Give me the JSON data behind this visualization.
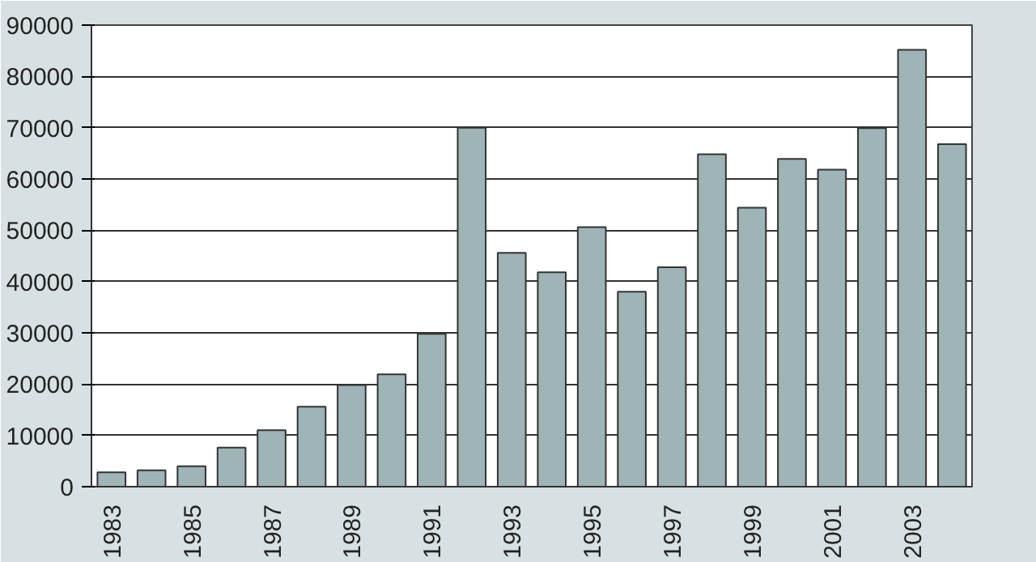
{
  "chart_data": {
    "type": "bar",
    "categories": [
      "1983",
      null,
      "1985",
      null,
      "1987",
      null,
      "1989",
      null,
      "1991",
      null,
      "1993",
      null,
      "1995",
      null,
      "1997",
      null,
      "1999",
      null,
      "2001",
      null,
      "2003",
      null
    ],
    "values": [
      2800,
      3200,
      4000,
      7600,
      11000,
      15600,
      19800,
      21900,
      29800,
      70000,
      45600,
      41800,
      50600,
      38000,
      42800,
      64800,
      54400,
      63900,
      61800,
      69900,
      85200,
      66800
    ],
    "color": "#9fb4b6",
    "ylim": [
      0,
      90000
    ],
    "yticks": [
      0,
      10000,
      20000,
      30000,
      40000,
      50000,
      60000,
      70000,
      80000,
      90000
    ],
    "grid": "y"
  }
}
